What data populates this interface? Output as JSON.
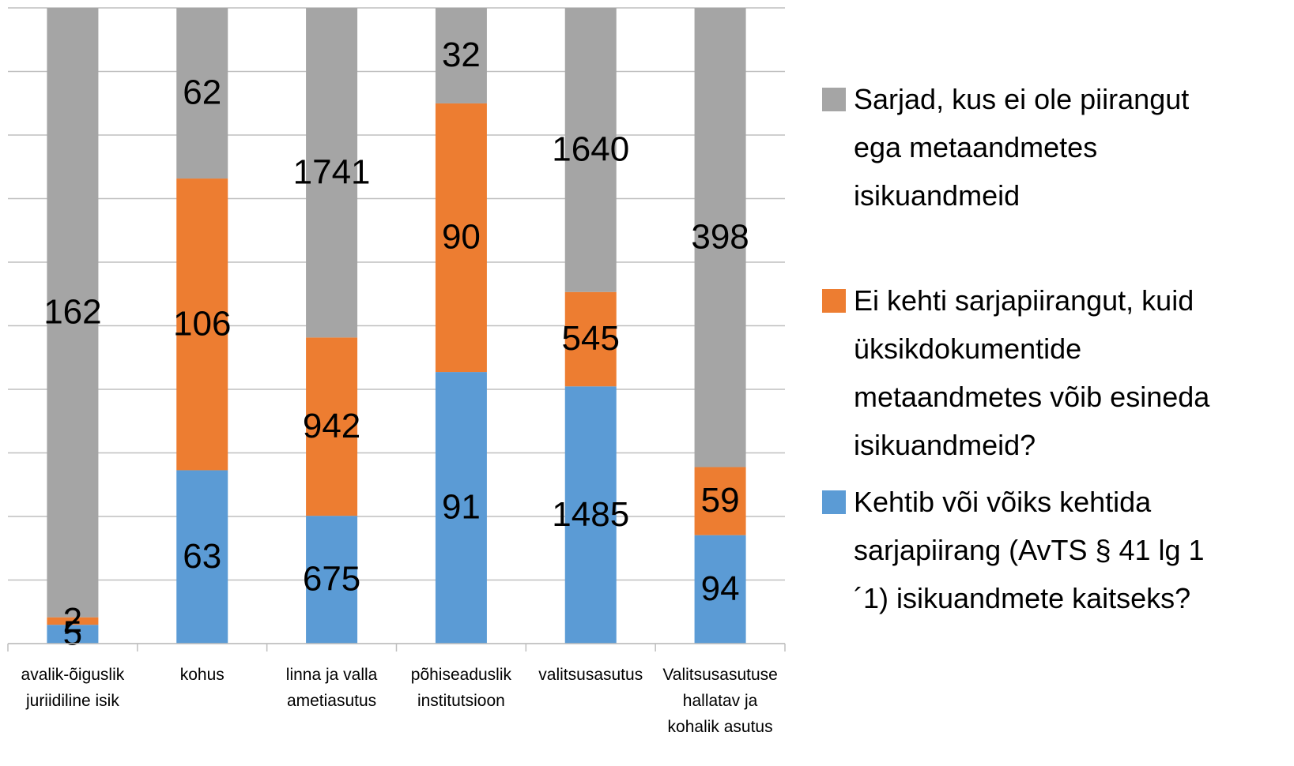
{
  "chart_data": {
    "type": "bar",
    "stacked": "percent",
    "categories": [
      "avalik-õiguslik juriidiline isik",
      "kohus",
      "linna ja valla ametiasutus",
      "põhiseaduslik institutsioon",
      "valitsusasutus",
      "Valitsusasutuse hallatav ja kohalik asutus"
    ],
    "series": [
      {
        "name": "Kehtib või võiks kehtida sarjapiirang (AvTS § 41 lg 1´1) isikuandmete kaitseks?",
        "color": "#5b9bd5",
        "values": [
          5,
          63,
          675,
          91,
          1485,
          94
        ]
      },
      {
        "name": "Ei kehti sarjapiirangut, kuid üksikdokumentide metaandmetes võib esineda isikuandmeid?",
        "color": "#ed7d31",
        "values": [
          2,
          106,
          942,
          90,
          545,
          59
        ]
      },
      {
        "name": "Sarjad, kus ei ole piirangut ega metaandmetes isikuandmeid",
        "color": "#a5a5a5",
        "values": [
          162,
          62,
          1741,
          32,
          1640,
          398
        ]
      }
    ],
    "ylim": [
      0,
      100
    ],
    "yticks": [
      0,
      10,
      20,
      30,
      40,
      50,
      60,
      70,
      80,
      90,
      100
    ],
    "grid": true,
    "legend": "right"
  }
}
